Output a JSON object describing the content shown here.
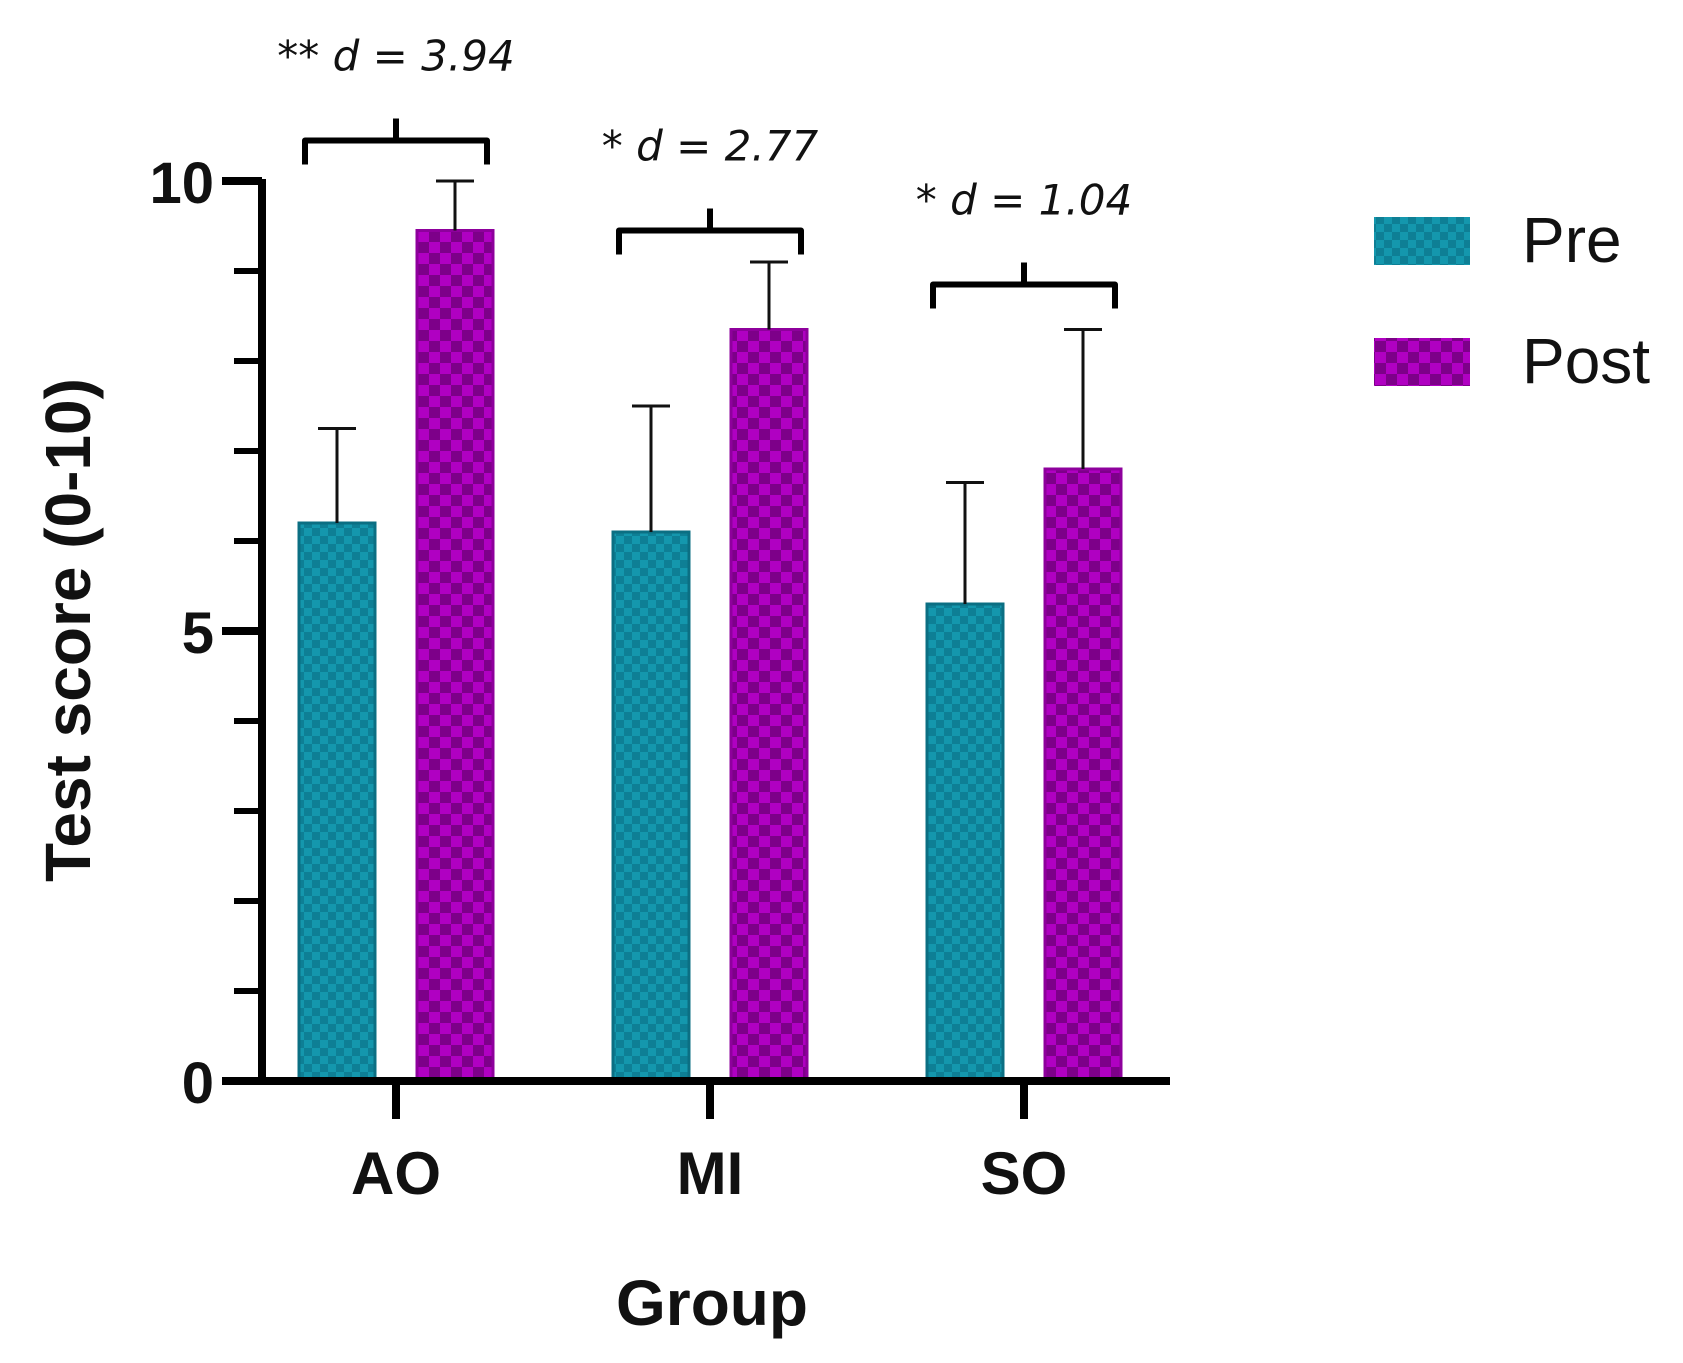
{
  "chart_data": {
    "type": "bar",
    "title": "",
    "xlabel": "Group",
    "ylabel": "Test score (0-10)",
    "ylim": [
      0,
      10
    ],
    "yticks_major": [
      0,
      5,
      10
    ],
    "yticks_minor": [
      1,
      2,
      3,
      4,
      6,
      7,
      8,
      9
    ],
    "categories": [
      "AO",
      "MI",
      "SO"
    ],
    "series": [
      {
        "name": "Pre",
        "color": "#0e7f95",
        "values": [
          6.2,
          6.1,
          5.3
        ],
        "errors": [
          1.05,
          1.4,
          1.35
        ]
      },
      {
        "name": "Post",
        "color": "#b000c2",
        "values": [
          9.45,
          8.35,
          6.8
        ],
        "errors": [
          0.55,
          0.75,
          1.55
        ]
      }
    ],
    "annotations": [
      {
        "category": "AO",
        "text": "** d = 3.94",
        "bracket_value": 10.45
      },
      {
        "category": "MI",
        "text": "* d = 2.77",
        "bracket_value": 9.45
      },
      {
        "category": "SO",
        "text": "* d = 1.04",
        "bracket_value": 8.85
      }
    ],
    "legend_position": "top-right"
  },
  "colors": {
    "pre_fill": "#0e7f95",
    "pre_pattern": "#1497ad",
    "post_fill": "#b000c2",
    "post_pattern": "#7d0089",
    "axis": "#000000"
  }
}
